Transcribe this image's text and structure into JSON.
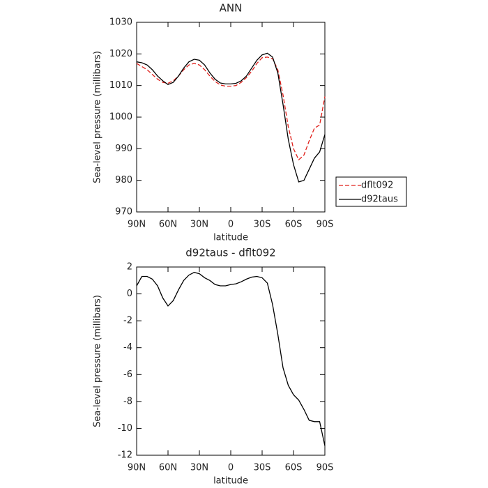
{
  "chart_data": [
    {
      "type": "line",
      "title": "ANN",
      "x_label": "latitude",
      "y_label": "Sea-level pressure (millibars)",
      "x": [
        90,
        85,
        80,
        75,
        70,
        65,
        60,
        55,
        50,
        45,
        40,
        35,
        30,
        25,
        20,
        15,
        10,
        5,
        0,
        -5,
        -10,
        -15,
        -20,
        -25,
        -30,
        -35,
        -40,
        -45,
        -50,
        -55,
        -60,
        -65,
        -70,
        -75,
        -80,
        -85,
        -90
      ],
      "xlim": [
        90,
        -90
      ],
      "xticks": [
        {
          "value": 90,
          "label": "90N"
        },
        {
          "value": 60,
          "label": "60N"
        },
        {
          "value": 30,
          "label": "30N"
        },
        0,
        {
          "value": -30,
          "label": "30S"
        },
        {
          "value": -60,
          "label": "60S"
        },
        {
          "value": -90,
          "label": "90S"
        }
      ],
      "ylim": [
        970,
        1030
      ],
      "yticks": [
        970,
        980,
        990,
        1000,
        1010,
        1020,
        1030
      ],
      "legend": "right",
      "series": [
        {
          "name": "dflt092",
          "color": "#e0201b",
          "line_style": "dashed",
          "values": [
            1017,
            1016,
            1015,
            1013.5,
            1012,
            1011,
            1010.7,
            1011.5,
            1013,
            1015,
            1016.5,
            1017,
            1016.5,
            1015,
            1013,
            1011.3,
            1010.2,
            1009.8,
            1009.8,
            1010,
            1011,
            1012.5,
            1014.5,
            1017,
            1018.8,
            1019,
            1018.5,
            1015,
            1007,
            997,
            990,
            986.5,
            988,
            992.5,
            996.5,
            997.5,
            1006.5
          ]
        },
        {
          "name": "d92taus",
          "color": "#000000",
          "line_style": "solid",
          "values": [
            1017.5,
            1017.2,
            1016.5,
            1015,
            1013,
            1011.5,
            1010.3,
            1011,
            1013,
            1015.5,
            1017.5,
            1018.3,
            1018,
            1016.5,
            1014,
            1012,
            1010.8,
            1010.5,
            1010.5,
            1010.7,
            1011.5,
            1013,
            1015.5,
            1018,
            1019.7,
            1020.2,
            1019,
            1014,
            1004,
            993,
            985,
            979.5,
            980,
            983.5,
            987,
            989,
            994.5
          ]
        }
      ]
    },
    {
      "type": "line",
      "title": "d92taus - dflt092",
      "x_label": "latitude",
      "y_label": "Sea-level pressure (millibars)",
      "x": [
        90,
        85,
        80,
        75,
        70,
        65,
        60,
        55,
        50,
        45,
        40,
        35,
        30,
        25,
        20,
        15,
        10,
        5,
        0,
        -5,
        -10,
        -15,
        -20,
        -25,
        -30,
        -35,
        -40,
        -45,
        -50,
        -55,
        -60,
        -65,
        -70,
        -75,
        -80,
        -85,
        -90
      ],
      "xlim": [
        90,
        -90
      ],
      "xticks": [
        {
          "value": 90,
          "label": "90N"
        },
        {
          "value": 60,
          "label": "60N"
        },
        {
          "value": 30,
          "label": "30N"
        },
        0,
        {
          "value": -30,
          "label": "30S"
        },
        {
          "value": -60,
          "label": "60S"
        },
        {
          "value": -90,
          "label": "90S"
        }
      ],
      "ylim": [
        -12,
        2
      ],
      "yticks": [
        -12,
        -10,
        -8,
        -6,
        -4,
        -2,
        0,
        2
      ],
      "color": "#000000",
      "values": [
        0.6,
        1.3,
        1.3,
        1.1,
        0.6,
        -0.3,
        -0.9,
        -0.5,
        0.3,
        1.0,
        1.4,
        1.6,
        1.5,
        1.2,
        1.0,
        0.7,
        0.6,
        0.6,
        0.7,
        0.75,
        0.9,
        1.1,
        1.25,
        1.3,
        1.2,
        0.8,
        -0.8,
        -3,
        -5.5,
        -6.8,
        -7.5,
        -7.9,
        -8.6,
        -9.4,
        -9.5,
        -9.5,
        -11.3
      ]
    }
  ]
}
